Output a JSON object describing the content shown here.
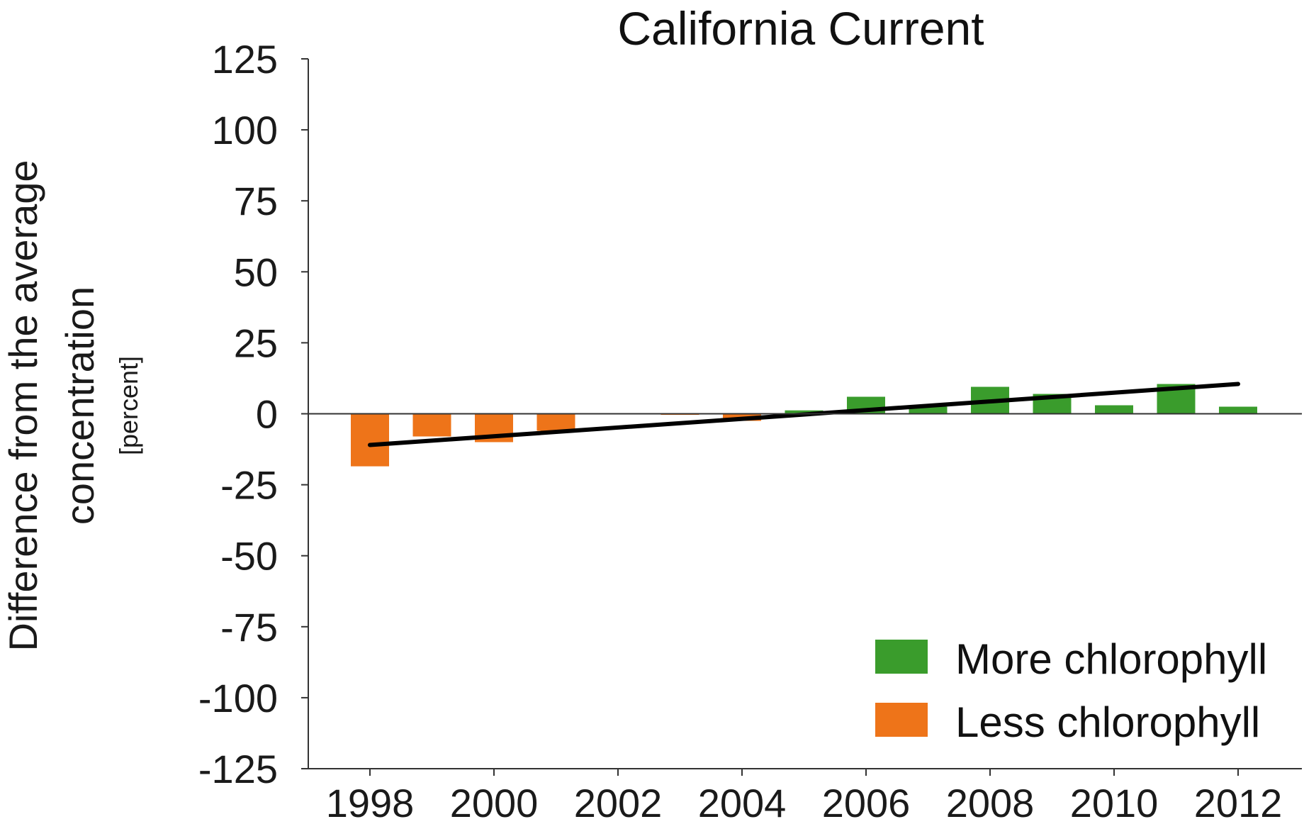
{
  "chart_data": {
    "type": "bar",
    "title": "California Current",
    "ylabel": [
      "Difference from the average",
      "concentration"
    ],
    "ylabel_unit": "[percent]",
    "ylim": [
      -125,
      125
    ],
    "yticks": [
      125,
      100,
      75,
      50,
      25,
      0,
      -25,
      -50,
      -75,
      -100,
      -125
    ],
    "xlim": [
      1997,
      2013
    ],
    "xticks": [
      1998,
      2000,
      2002,
      2004,
      2006,
      2008,
      2010,
      2012
    ],
    "categories": [
      1998,
      1999,
      2000,
      2001,
      2002,
      2003,
      2004,
      2005,
      2006,
      2007,
      2008,
      2009,
      2010,
      2011,
      2012
    ],
    "values": [
      -18.5,
      -8,
      -10,
      -6,
      0,
      -0.3,
      -2.5,
      1.2,
      6,
      2.5,
      9.5,
      7,
      3,
      10.5,
      2.5
    ],
    "trend": {
      "x": [
        1998,
        2012
      ],
      "y": [
        -11,
        10.5
      ]
    },
    "colors": {
      "positive": "#3a9c2c",
      "negative": "#ee7419",
      "trend": "#000000",
      "axis": "#333333"
    },
    "legend": {
      "position": "bottom-right",
      "items": [
        {
          "label": "More chlorophyll",
          "color": "#3a9c2c"
        },
        {
          "label": "Less chlorophyll",
          "color": "#ee7419"
        }
      ]
    },
    "grid": false
  }
}
